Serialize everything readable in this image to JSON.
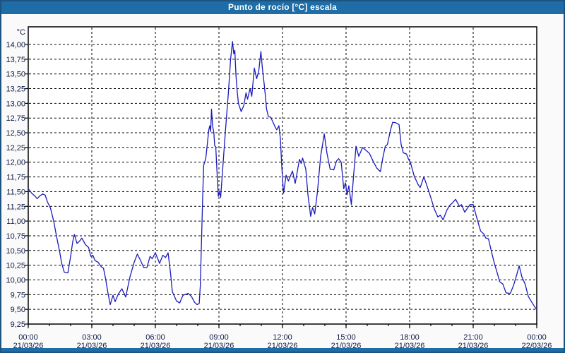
{
  "window": {
    "title": "Punto de rocío [°C] escala"
  },
  "colors": {
    "titlebar_bg": "#1e6da6",
    "window_border": "#1d5381",
    "title_text": "#ffffff",
    "page_bg": "#fafafa",
    "plot_bg": "#ffffff",
    "plot_border": "#000000",
    "grid": "#000000",
    "tick_text": "#0d1b45",
    "line": "#1a1abe"
  },
  "chart_data": {
    "type": "line",
    "title": "Punto de rocío [°C] escala",
    "unit_label": "°C",
    "grid": "dashed",
    "x_axis": {
      "range_hours": [
        0,
        24
      ],
      "minor_tick_hours": 1,
      "major_ticks": [
        {
          "hour": 0,
          "time": "00:00",
          "date": "21/03/26"
        },
        {
          "hour": 3,
          "time": "03:00",
          "date": "21/03/26"
        },
        {
          "hour": 6,
          "time": "06:00",
          "date": "21/03/26"
        },
        {
          "hour": 9,
          "time": "09:00",
          "date": "21/03/26"
        },
        {
          "hour": 12,
          "time": "12:00",
          "date": "21/03/26"
        },
        {
          "hour": 15,
          "time": "15:00",
          "date": "21/03/26"
        },
        {
          "hour": 18,
          "time": "18:00",
          "date": "21/03/26"
        },
        {
          "hour": 21,
          "time": "21:00",
          "date": "21/03/26"
        },
        {
          "hour": 24,
          "time": "00:00",
          "date": "22/03/26"
        }
      ]
    },
    "y_axis": {
      "min": 9.25,
      "max": 14.3,
      "step": 0.25,
      "tick_labels": [
        "14,00",
        "13,75",
        "13,50",
        "13,25",
        "13,00",
        "12,75",
        "12,50",
        "12,25",
        "12,00",
        "11,75",
        "11,50",
        "11,25",
        "11,00",
        "10,75",
        "10,50",
        "10,25",
        "10,00",
        "9,75",
        "9,50",
        "9,25"
      ]
    },
    "series": [
      {
        "name": "punto-de-rocio",
        "color": "#1a1abe",
        "points": [
          [
            0,
            11.55
          ],
          [
            0.17,
            11.47
          ],
          [
            0.33,
            11.42
          ],
          [
            0.42,
            11.38
          ],
          [
            0.55,
            11.43
          ],
          [
            0.68,
            11.46
          ],
          [
            0.8,
            11.44
          ],
          [
            0.9,
            11.33
          ],
          [
            1.05,
            11.22
          ],
          [
            1.2,
            11.0
          ],
          [
            1.33,
            10.75
          ],
          [
            1.47,
            10.5
          ],
          [
            1.58,
            10.28
          ],
          [
            1.7,
            10.13
          ],
          [
            1.87,
            10.12
          ],
          [
            2.0,
            10.4
          ],
          [
            2.1,
            10.65
          ],
          [
            2.18,
            10.77
          ],
          [
            2.3,
            10.62
          ],
          [
            2.42,
            10.66
          ],
          [
            2.53,
            10.71
          ],
          [
            2.7,
            10.6
          ],
          [
            2.85,
            10.55
          ],
          [
            2.95,
            10.4
          ],
          [
            3.05,
            10.42
          ],
          [
            3.15,
            10.33
          ],
          [
            3.3,
            10.3
          ],
          [
            3.45,
            10.22
          ],
          [
            3.55,
            10.2
          ],
          [
            3.65,
            10.02
          ],
          [
            3.75,
            9.8
          ],
          [
            3.87,
            9.58
          ],
          [
            4.0,
            9.74
          ],
          [
            4.1,
            9.63
          ],
          [
            4.25,
            9.76
          ],
          [
            4.42,
            9.85
          ],
          [
            4.6,
            9.71
          ],
          [
            4.8,
            10.05
          ],
          [
            5.0,
            10.3
          ],
          [
            5.15,
            10.44
          ],
          [
            5.3,
            10.33
          ],
          [
            5.45,
            10.21
          ],
          [
            5.6,
            10.21
          ],
          [
            5.75,
            10.4
          ],
          [
            5.85,
            10.36
          ],
          [
            6.0,
            10.46
          ],
          [
            6.2,
            10.28
          ],
          [
            6.35,
            10.42
          ],
          [
            6.48,
            10.38
          ],
          [
            6.6,
            10.46
          ],
          [
            6.72,
            10.1
          ],
          [
            6.8,
            9.8
          ],
          [
            7.0,
            9.64
          ],
          [
            7.15,
            9.61
          ],
          [
            7.3,
            9.74
          ],
          [
            7.55,
            9.77
          ],
          [
            7.7,
            9.72
          ],
          [
            7.85,
            9.62
          ],
          [
            7.97,
            9.58
          ],
          [
            8.07,
            9.6
          ],
          [
            8.12,
            9.9
          ],
          [
            8.18,
            10.7
          ],
          [
            8.24,
            11.5
          ],
          [
            8.28,
            11.95
          ],
          [
            8.33,
            12.0
          ],
          [
            8.38,
            12.07
          ],
          [
            8.45,
            12.3
          ],
          [
            8.52,
            12.55
          ],
          [
            8.57,
            12.62
          ],
          [
            8.61,
            12.52
          ],
          [
            8.65,
            12.9
          ],
          [
            8.7,
            12.62
          ],
          [
            8.76,
            12.5
          ],
          [
            8.8,
            12.28
          ],
          [
            8.85,
            12.26
          ],
          [
            8.9,
            11.9
          ],
          [
            8.97,
            11.42
          ],
          [
            9.02,
            11.5
          ],
          [
            9.08,
            11.4
          ],
          [
            9.15,
            11.75
          ],
          [
            9.3,
            12.5
          ],
          [
            9.45,
            13.2
          ],
          [
            9.55,
            13.75
          ],
          [
            9.64,
            14.05
          ],
          [
            9.7,
            13.84
          ],
          [
            9.75,
            13.9
          ],
          [
            9.8,
            13.5
          ],
          [
            9.85,
            13.25
          ],
          [
            9.92,
            13.0
          ],
          [
            10.05,
            12.86
          ],
          [
            10.17,
            12.96
          ],
          [
            10.28,
            13.18
          ],
          [
            10.35,
            13.07
          ],
          [
            10.47,
            13.25
          ],
          [
            10.55,
            13.12
          ],
          [
            10.67,
            13.6
          ],
          [
            10.78,
            13.42
          ],
          [
            10.88,
            13.55
          ],
          [
            10.98,
            13.88
          ],
          [
            11.05,
            13.6
          ],
          [
            11.15,
            13.28
          ],
          [
            11.25,
            12.9
          ],
          [
            11.33,
            12.78
          ],
          [
            11.45,
            12.76
          ],
          [
            11.55,
            12.68
          ],
          [
            11.65,
            12.6
          ],
          [
            11.73,
            12.55
          ],
          [
            11.83,
            12.62
          ],
          [
            11.9,
            12.4
          ],
          [
            11.97,
            11.9
          ],
          [
            12.05,
            11.47
          ],
          [
            12.17,
            11.78
          ],
          [
            12.28,
            11.68
          ],
          [
            12.47,
            11.85
          ],
          [
            12.6,
            11.64
          ],
          [
            12.8,
            12.05
          ],
          [
            12.88,
            11.98
          ],
          [
            12.95,
            12.07
          ],
          [
            13.1,
            11.88
          ],
          [
            13.2,
            11.45
          ],
          [
            13.33,
            11.08
          ],
          [
            13.42,
            11.23
          ],
          [
            13.52,
            11.12
          ],
          [
            13.65,
            11.5
          ],
          [
            13.8,
            12.1
          ],
          [
            13.9,
            12.32
          ],
          [
            13.97,
            12.48
          ],
          [
            14.1,
            12.15
          ],
          [
            14.25,
            11.88
          ],
          [
            14.42,
            11.87
          ],
          [
            14.55,
            12.02
          ],
          [
            14.65,
            12.06
          ],
          [
            14.77,
            12.0
          ],
          [
            14.89,
            11.55
          ],
          [
            14.97,
            11.65
          ],
          [
            15.05,
            11.45
          ],
          [
            15.13,
            11.6
          ],
          [
            15.25,
            11.28
          ],
          [
            15.35,
            11.75
          ],
          [
            15.47,
            12.27
          ],
          [
            15.6,
            12.1
          ],
          [
            15.78,
            12.25
          ],
          [
            15.95,
            12.2
          ],
          [
            16.1,
            12.15
          ],
          [
            16.3,
            12.0
          ],
          [
            16.45,
            11.9
          ],
          [
            16.62,
            11.84
          ],
          [
            16.75,
            12.1
          ],
          [
            16.85,
            12.27
          ],
          [
            16.95,
            12.3
          ],
          [
            17.1,
            12.55
          ],
          [
            17.2,
            12.68
          ],
          [
            17.35,
            12.67
          ],
          [
            17.5,
            12.64
          ],
          [
            17.6,
            12.3
          ],
          [
            17.7,
            12.16
          ],
          [
            17.85,
            12.14
          ],
          [
            17.95,
            12.05
          ],
          [
            18.05,
            11.98
          ],
          [
            18.22,
            11.76
          ],
          [
            18.4,
            11.62
          ],
          [
            18.5,
            11.57
          ],
          [
            18.67,
            11.75
          ],
          [
            18.8,
            11.62
          ],
          [
            19.0,
            11.4
          ],
          [
            19.17,
            11.2
          ],
          [
            19.33,
            11.07
          ],
          [
            19.45,
            11.1
          ],
          [
            19.58,
            11.02
          ],
          [
            19.75,
            11.18
          ],
          [
            19.9,
            11.27
          ],
          [
            20.0,
            11.3
          ],
          [
            20.17,
            11.37
          ],
          [
            20.35,
            11.25
          ],
          [
            20.45,
            11.28
          ],
          [
            20.6,
            11.15
          ],
          [
            20.75,
            11.23
          ],
          [
            20.85,
            11.28
          ],
          [
            21.0,
            11.28
          ],
          [
            21.15,
            11.08
          ],
          [
            21.35,
            10.83
          ],
          [
            21.5,
            10.78
          ],
          [
            21.6,
            10.71
          ],
          [
            21.72,
            10.7
          ],
          [
            21.85,
            10.5
          ],
          [
            22.0,
            10.28
          ],
          [
            22.15,
            10.1
          ],
          [
            22.25,
            9.97
          ],
          [
            22.4,
            9.93
          ],
          [
            22.55,
            9.78
          ],
          [
            22.75,
            9.77
          ],
          [
            22.9,
            9.9
          ],
          [
            23.05,
            10.08
          ],
          [
            23.17,
            10.24
          ],
          [
            23.3,
            10.05
          ],
          [
            23.45,
            9.93
          ],
          [
            23.6,
            9.72
          ],
          [
            23.8,
            9.6
          ],
          [
            23.93,
            9.53
          ],
          [
            24.0,
            9.5
          ]
        ]
      }
    ]
  }
}
